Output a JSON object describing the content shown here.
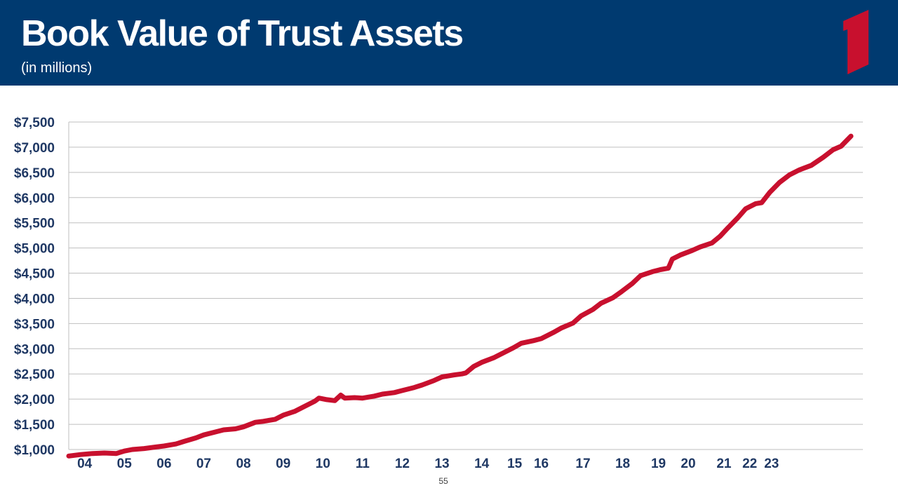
{
  "header": {
    "title": "Book Value of Trust Assets",
    "subtitle": "(in millions)",
    "background_color": "#003a70",
    "logo_color": "#c8102e"
  },
  "page_number": "55",
  "chart_data": {
    "type": "line",
    "title": "",
    "xlabel": "",
    "ylabel": "",
    "ylim": [
      1000,
      7500
    ],
    "y_ticks": [
      1000,
      1500,
      2000,
      2500,
      3000,
      3500,
      4000,
      4500,
      5000,
      5500,
      6000,
      6500,
      7000,
      7500
    ],
    "y_tick_labels": [
      "$1,000",
      "$1,500",
      "$2,000",
      "$2,500",
      "$3,000",
      "$3,500",
      "$4,000",
      "$4,500",
      "$5,000",
      "$5,500",
      "$6,000",
      "$6,500",
      "$7,000",
      "$7,500"
    ],
    "x_tick_labels": [
      {
        "label": "04",
        "x": 2004.0
      },
      {
        "label": "05",
        "x": 2005.0
      },
      {
        "label": "06",
        "x": 2006.0
      },
      {
        "label": "07",
        "x": 2007.0
      },
      {
        "label": "08",
        "x": 2008.0
      },
      {
        "label": "09",
        "x": 2009.0
      },
      {
        "label": "10",
        "x": 2010.0
      },
      {
        "label": "11",
        "x": 2011.0
      },
      {
        "label": "12",
        "x": 2012.0
      },
      {
        "label": "13",
        "x": 2013.0
      },
      {
        "label": "14",
        "x": 2014.0
      },
      {
        "label": "15",
        "x": 2014.83
      },
      {
        "label": "16",
        "x": 2015.5
      },
      {
        "label": "17",
        "x": 2016.55
      },
      {
        "label": "18",
        "x": 2017.55
      },
      {
        "label": "19",
        "x": 2018.45
      },
      {
        "label": "20",
        "x": 2019.2
      },
      {
        "label": "21",
        "x": 2020.1
      },
      {
        "label": "22",
        "x": 2020.75
      },
      {
        "label": "23",
        "x": 2021.3
      }
    ],
    "grid": true,
    "line_color": "#c8102e",
    "series": [
      {
        "values": [
          [
            2003.6,
            870
          ],
          [
            2003.9,
            900
          ],
          [
            2004.2,
            920
          ],
          [
            2004.5,
            930
          ],
          [
            2004.8,
            920
          ],
          [
            2005.0,
            970
          ],
          [
            2005.2,
            1000
          ],
          [
            2005.5,
            1020
          ],
          [
            2005.8,
            1050
          ],
          [
            2006.0,
            1070
          ],
          [
            2006.3,
            1110
          ],
          [
            2006.5,
            1160
          ],
          [
            2006.8,
            1230
          ],
          [
            2007.0,
            1290
          ],
          [
            2007.3,
            1350
          ],
          [
            2007.5,
            1390
          ],
          [
            2007.8,
            1410
          ],
          [
            2008.0,
            1450
          ],
          [
            2008.3,
            1540
          ],
          [
            2008.5,
            1560
          ],
          [
            2008.8,
            1600
          ],
          [
            2009.0,
            1680
          ],
          [
            2009.3,
            1760
          ],
          [
            2009.5,
            1840
          ],
          [
            2009.8,
            1960
          ],
          [
            2009.9,
            2020
          ],
          [
            2010.1,
            1990
          ],
          [
            2010.3,
            1970
          ],
          [
            2010.45,
            2080
          ],
          [
            2010.55,
            2020
          ],
          [
            2010.8,
            2030
          ],
          [
            2011.0,
            2020
          ],
          [
            2011.3,
            2060
          ],
          [
            2011.5,
            2100
          ],
          [
            2011.8,
            2130
          ],
          [
            2012.0,
            2170
          ],
          [
            2012.3,
            2230
          ],
          [
            2012.5,
            2280
          ],
          [
            2012.8,
            2370
          ],
          [
            2013.0,
            2440
          ],
          [
            2013.3,
            2480
          ],
          [
            2013.5,
            2500
          ],
          [
            2013.6,
            2520
          ],
          [
            2013.8,
            2650
          ],
          [
            2014.0,
            2730
          ],
          [
            2014.3,
            2820
          ],
          [
            2014.5,
            2900
          ],
          [
            2014.8,
            3020
          ],
          [
            2015.0,
            3110
          ],
          [
            2015.3,
            3160
          ],
          [
            2015.5,
            3200
          ],
          [
            2015.8,
            3320
          ],
          [
            2016.0,
            3410
          ],
          [
            2016.3,
            3510
          ],
          [
            2016.5,
            3650
          ],
          [
            2016.8,
            3780
          ],
          [
            2017.0,
            3900
          ],
          [
            2017.3,
            4010
          ],
          [
            2017.5,
            4120
          ],
          [
            2017.8,
            4300
          ],
          [
            2018.0,
            4450
          ],
          [
            2018.3,
            4530
          ],
          [
            2018.5,
            4570
          ],
          [
            2018.7,
            4600
          ],
          [
            2018.8,
            4780
          ],
          [
            2019.0,
            4860
          ],
          [
            2019.3,
            4950
          ],
          [
            2019.5,
            5020
          ],
          [
            2019.8,
            5100
          ],
          [
            2020.0,
            5230
          ],
          [
            2020.2,
            5400
          ],
          [
            2020.45,
            5600
          ],
          [
            2020.65,
            5780
          ],
          [
            2020.9,
            5880
          ],
          [
            2021.05,
            5900
          ],
          [
            2021.25,
            6100
          ],
          [
            2021.5,
            6300
          ],
          [
            2021.75,
            6450
          ],
          [
            2022.0,
            6550
          ],
          [
            2022.3,
            6640
          ],
          [
            2022.6,
            6800
          ],
          [
            2022.85,
            6950
          ],
          [
            2023.05,
            7020
          ],
          [
            2023.3,
            7220
          ]
        ]
      }
    ]
  }
}
